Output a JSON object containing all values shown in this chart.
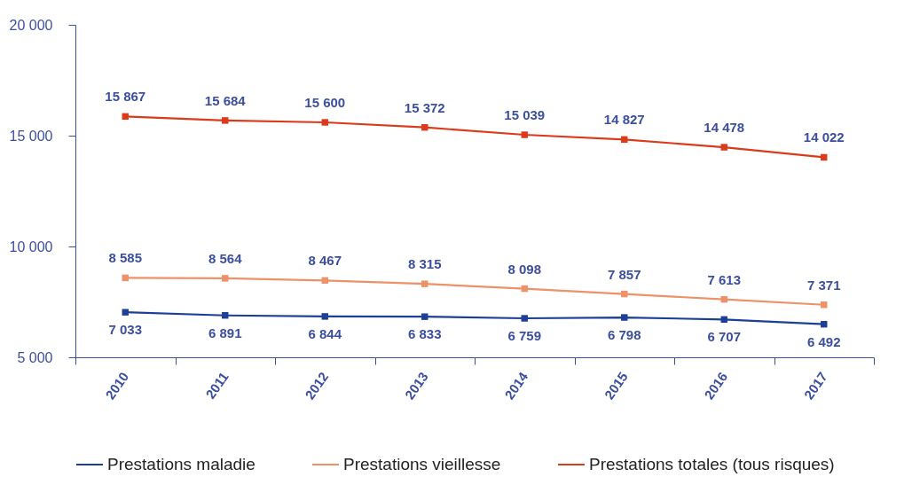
{
  "chart_data": {
    "type": "line",
    "categories": [
      "2010",
      "2011",
      "2012",
      "2013",
      "2014",
      "2015",
      "2016",
      "2017"
    ],
    "series": [
      {
        "name": "Prestations maladie",
        "color": "#1d3f98",
        "values": [
          7033,
          6891,
          6844,
          6833,
          6759,
          6798,
          6707,
          6492
        ]
      },
      {
        "name": "Prestations vieillesse",
        "color": "#ee9168",
        "values": [
          8585,
          8564,
          8467,
          8315,
          8098,
          7857,
          7613,
          7371
        ]
      },
      {
        "name": "Prestations totales (tous risques)",
        "color": "#db3a1b",
        "values": [
          15867,
          15684,
          15600,
          15372,
          15039,
          14827,
          14478,
          14022
        ]
      }
    ],
    "ylim": [
      5000,
      20000
    ],
    "yticks": [
      {
        "value": 5000,
        "label": "5 000"
      },
      {
        "value": 10000,
        "label": "10 000"
      },
      {
        "value": 15000,
        "label": "15 000"
      },
      {
        "value": 20000,
        "label": "20 000"
      }
    ],
    "grid": false,
    "legend": "bottom",
    "marker": "square",
    "line_style": "solid",
    "data_labels": true
  }
}
